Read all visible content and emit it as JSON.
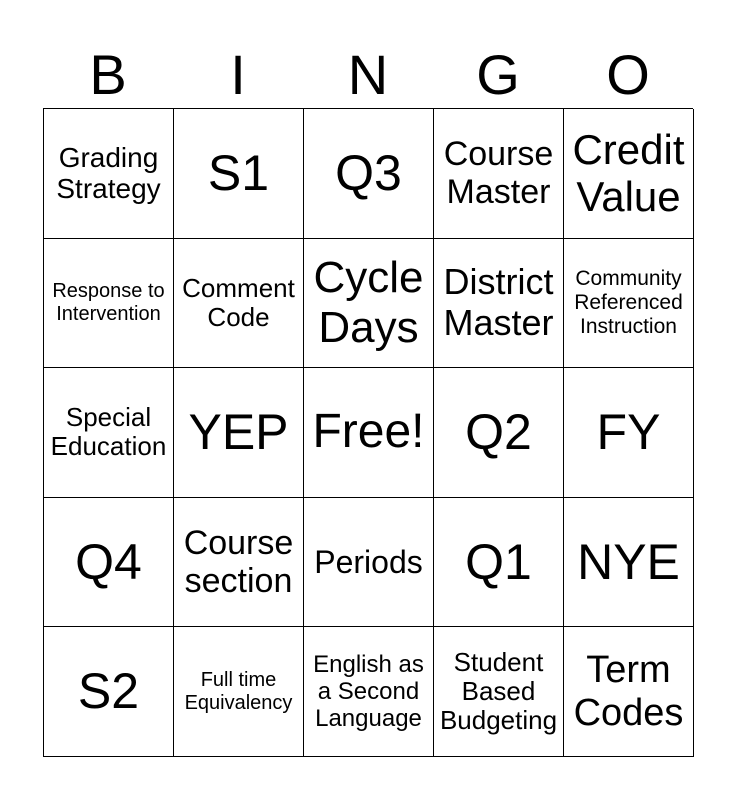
{
  "header": [
    "B",
    "I",
    "N",
    "G",
    "O"
  ],
  "cells": [
    [
      "Grading Strategy",
      "S1",
      "Q3",
      "Course Master",
      "Credit Value"
    ],
    [
      "Response to Intervention",
      "Comment Code",
      "Cycle Days",
      "District Master",
      "Community Referenced Instruction"
    ],
    [
      "Special Education",
      "YEP",
      "Free!",
      "Q2",
      "FY"
    ],
    [
      "Q4",
      "Course section",
      "Periods",
      "Q1",
      "NYE"
    ],
    [
      "S2",
      "Full time Equivalency",
      "English as a Second Language",
      "Student Based Budgeting",
      "Term Codes"
    ]
  ]
}
